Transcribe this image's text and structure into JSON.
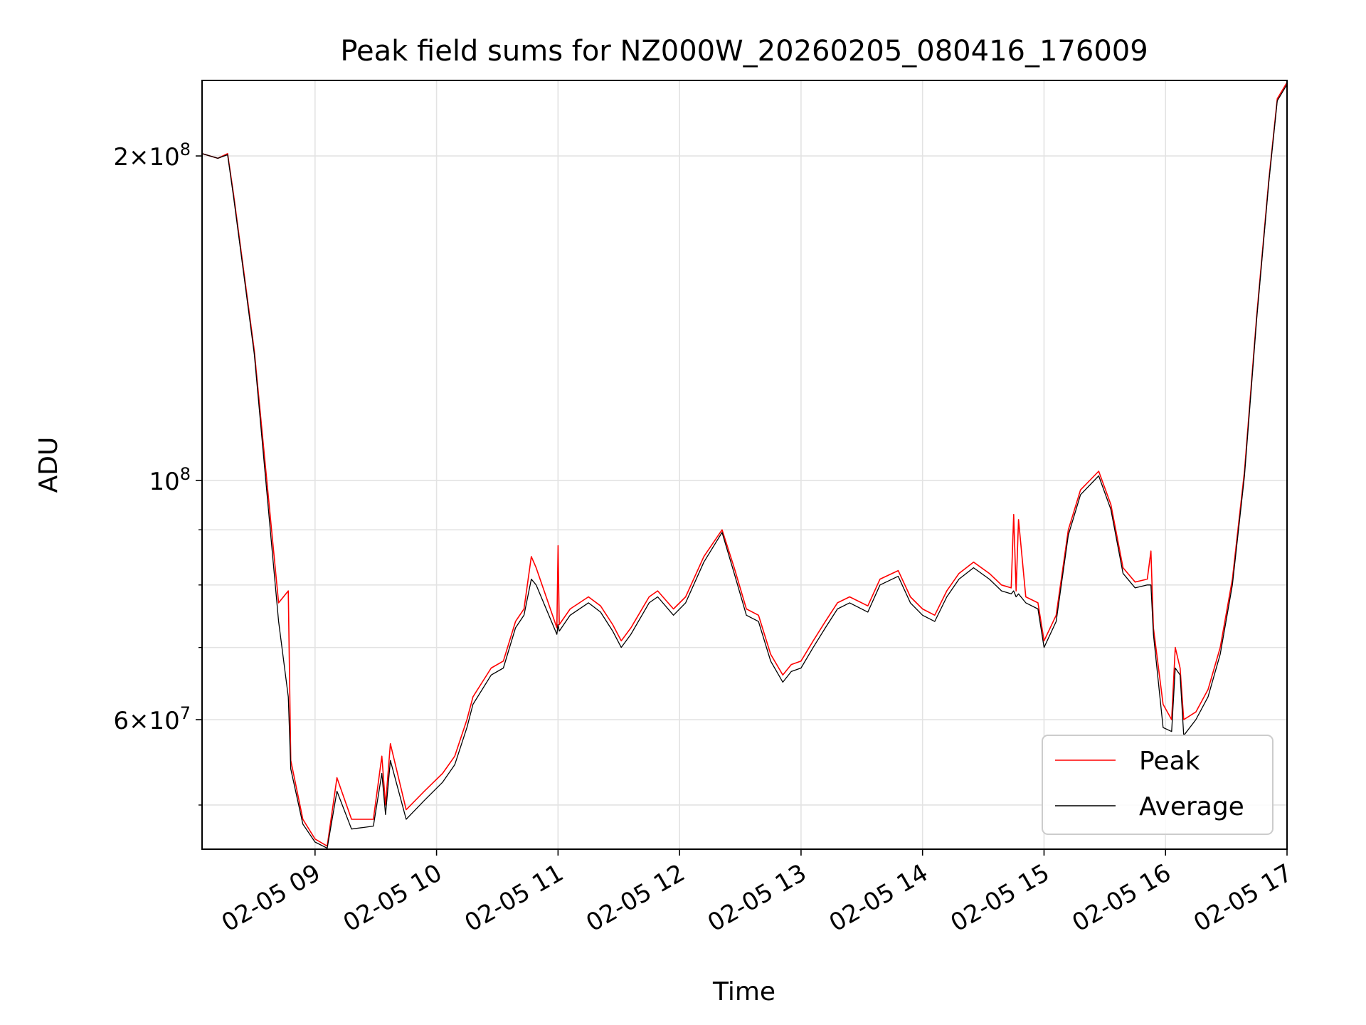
{
  "chart_data": {
    "type": "line",
    "title": "Peak field sums for NZ000W_20260205_080416_176009",
    "xlabel": "Time",
    "ylabel": "ADU",
    "yscale": "log",
    "xlim_hours": [
      8.07,
      17.0
    ],
    "ylim": [
      45500000,
      235000000
    ],
    "grid": true,
    "legend_position": "lower-right",
    "x_ticks": [
      {
        "value": 9,
        "label": "02-05 09"
      },
      {
        "value": 10,
        "label": "02-05 10"
      },
      {
        "value": 11,
        "label": "02-05 11"
      },
      {
        "value": 12,
        "label": "02-05 12"
      },
      {
        "value": 13,
        "label": "02-05 13"
      },
      {
        "value": 14,
        "label": "02-05 14"
      },
      {
        "value": 15,
        "label": "02-05 15"
      },
      {
        "value": 16,
        "label": "02-05 16"
      },
      {
        "value": 17,
        "label": "02-05 17"
      }
    ],
    "y_ticks": [
      {
        "value": 200000000,
        "mantissa": "2×10",
        "exponent": "8"
      },
      {
        "value": 100000000,
        "mantissa": "10",
        "exponent": "8"
      },
      {
        "value": 60000000,
        "mantissa": "6×10",
        "exponent": "7"
      }
    ],
    "y_minor_ticks": [
      50000000,
      70000000,
      80000000,
      90000000
    ],
    "series": [
      {
        "name": "Peak",
        "color": "#ff0000",
        "x": [
          8.07,
          8.2,
          8.28,
          8.33,
          8.5,
          8.7,
          8.78,
          8.8,
          8.9,
          9.0,
          9.1,
          9.18,
          9.3,
          9.48,
          9.55,
          9.58,
          9.62,
          9.75,
          9.9,
          10.05,
          10.15,
          10.25,
          10.3,
          10.45,
          10.55,
          10.65,
          10.72,
          10.78,
          10.82,
          10.99,
          11.0,
          11.01,
          11.1,
          11.25,
          11.35,
          11.45,
          11.52,
          11.6,
          11.75,
          11.82,
          11.95,
          12.05,
          12.2,
          12.35,
          12.45,
          12.55,
          12.65,
          12.75,
          12.85,
          12.92,
          13.0,
          13.1,
          13.2,
          13.3,
          13.4,
          13.55,
          13.65,
          13.8,
          13.9,
          14.0,
          14.1,
          14.2,
          14.3,
          14.42,
          14.55,
          14.65,
          14.73,
          14.75,
          14.77,
          14.79,
          14.85,
          14.95,
          15.0,
          15.1,
          15.2,
          15.3,
          15.45,
          15.55,
          15.65,
          15.75,
          15.85,
          15.88,
          15.9,
          15.98,
          16.05,
          16.08,
          16.12,
          16.15,
          16.25,
          16.35,
          16.45,
          16.55,
          16.65,
          16.75,
          16.85,
          16.92,
          17.0
        ],
        "y": [
          201000000,
          199000000,
          201000000,
          184000000,
          132000000,
          77000000,
          79000000,
          55000000,
          48500000,
          46500000,
          45800000,
          53000000,
          48500000,
          48500000,
          55500000,
          50000000,
          57000000,
          49500000,
          51500000,
          53500000,
          55500000,
          60000000,
          63000000,
          67000000,
          68000000,
          74000000,
          76000000,
          85000000,
          83000000,
          73000000,
          87000000,
          73500000,
          76000000,
          78000000,
          76500000,
          73500000,
          71000000,
          73000000,
          78000000,
          79000000,
          76000000,
          78000000,
          85000000,
          90000000,
          83000000,
          76000000,
          75000000,
          69000000,
          66000000,
          67500000,
          68000000,
          71000000,
          74000000,
          77000000,
          78000000,
          76500000,
          81000000,
          82500000,
          78000000,
          76000000,
          75000000,
          79000000,
          82000000,
          84000000,
          82000000,
          80000000,
          79500000,
          93000000,
          79000000,
          92000000,
          78000000,
          77000000,
          71000000,
          75000000,
          90000000,
          98000000,
          102000000,
          95000000,
          83000000,
          80500000,
          81000000,
          86000000,
          73000000,
          62000000,
          60000000,
          70000000,
          67000000,
          60000000,
          61000000,
          64000000,
          70000000,
          81000000,
          102000000,
          142000000,
          190000000,
          226000000,
          234000000
        ]
      },
      {
        "name": "Average",
        "color": "#000000",
        "x": [
          8.07,
          8.2,
          8.28,
          8.33,
          8.5,
          8.7,
          8.78,
          8.8,
          8.9,
          9.0,
          9.1,
          9.18,
          9.3,
          9.48,
          9.55,
          9.58,
          9.62,
          9.75,
          9.9,
          10.05,
          10.15,
          10.25,
          10.3,
          10.45,
          10.55,
          10.65,
          10.72,
          10.78,
          10.82,
          10.99,
          11.0,
          11.01,
          11.1,
          11.25,
          11.35,
          11.45,
          11.52,
          11.6,
          11.75,
          11.82,
          11.95,
          12.05,
          12.2,
          12.35,
          12.45,
          12.55,
          12.65,
          12.75,
          12.85,
          12.92,
          13.0,
          13.1,
          13.2,
          13.3,
          13.4,
          13.55,
          13.65,
          13.8,
          13.9,
          14.0,
          14.1,
          14.2,
          14.3,
          14.42,
          14.55,
          14.65,
          14.73,
          14.75,
          14.77,
          14.79,
          14.85,
          14.95,
          15.0,
          15.1,
          15.2,
          15.3,
          15.45,
          15.55,
          15.65,
          15.75,
          15.85,
          15.88,
          15.9,
          15.98,
          16.05,
          16.08,
          16.12,
          16.15,
          16.25,
          16.35,
          16.45,
          16.55,
          16.65,
          16.75,
          16.85,
          16.92,
          17.0
        ],
        "y": [
          201000000,
          199000000,
          200500000,
          183000000,
          131000000,
          74000000,
          63000000,
          54000000,
          48000000,
          46200000,
          45600000,
          51500000,
          47500000,
          47800000,
          53500000,
          49000000,
          55000000,
          48500000,
          50500000,
          52500000,
          54500000,
          59000000,
          62000000,
          66000000,
          67000000,
          73000000,
          75000000,
          81000000,
          80000000,
          72000000,
          73500000,
          72500000,
          75000000,
          77000000,
          75500000,
          72500000,
          70000000,
          72000000,
          77000000,
          78000000,
          75000000,
          77000000,
          84000000,
          89500000,
          82000000,
          75000000,
          74000000,
          68000000,
          65000000,
          66500000,
          67000000,
          70000000,
          73000000,
          76000000,
          77000000,
          75500000,
          80000000,
          81500000,
          77000000,
          75000000,
          74000000,
          78000000,
          81000000,
          83000000,
          81000000,
          79000000,
          78500000,
          79000000,
          78000000,
          78500000,
          77000000,
          76000000,
          70000000,
          74000000,
          89000000,
          97000000,
          101000000,
          94000000,
          82000000,
          79500000,
          80000000,
          80000000,
          72000000,
          59000000,
          58500000,
          67000000,
          66000000,
          58000000,
          60000000,
          63000000,
          69000000,
          80000000,
          101000000,
          141000000,
          189000000,
          225000000,
          233000000
        ]
      }
    ]
  }
}
